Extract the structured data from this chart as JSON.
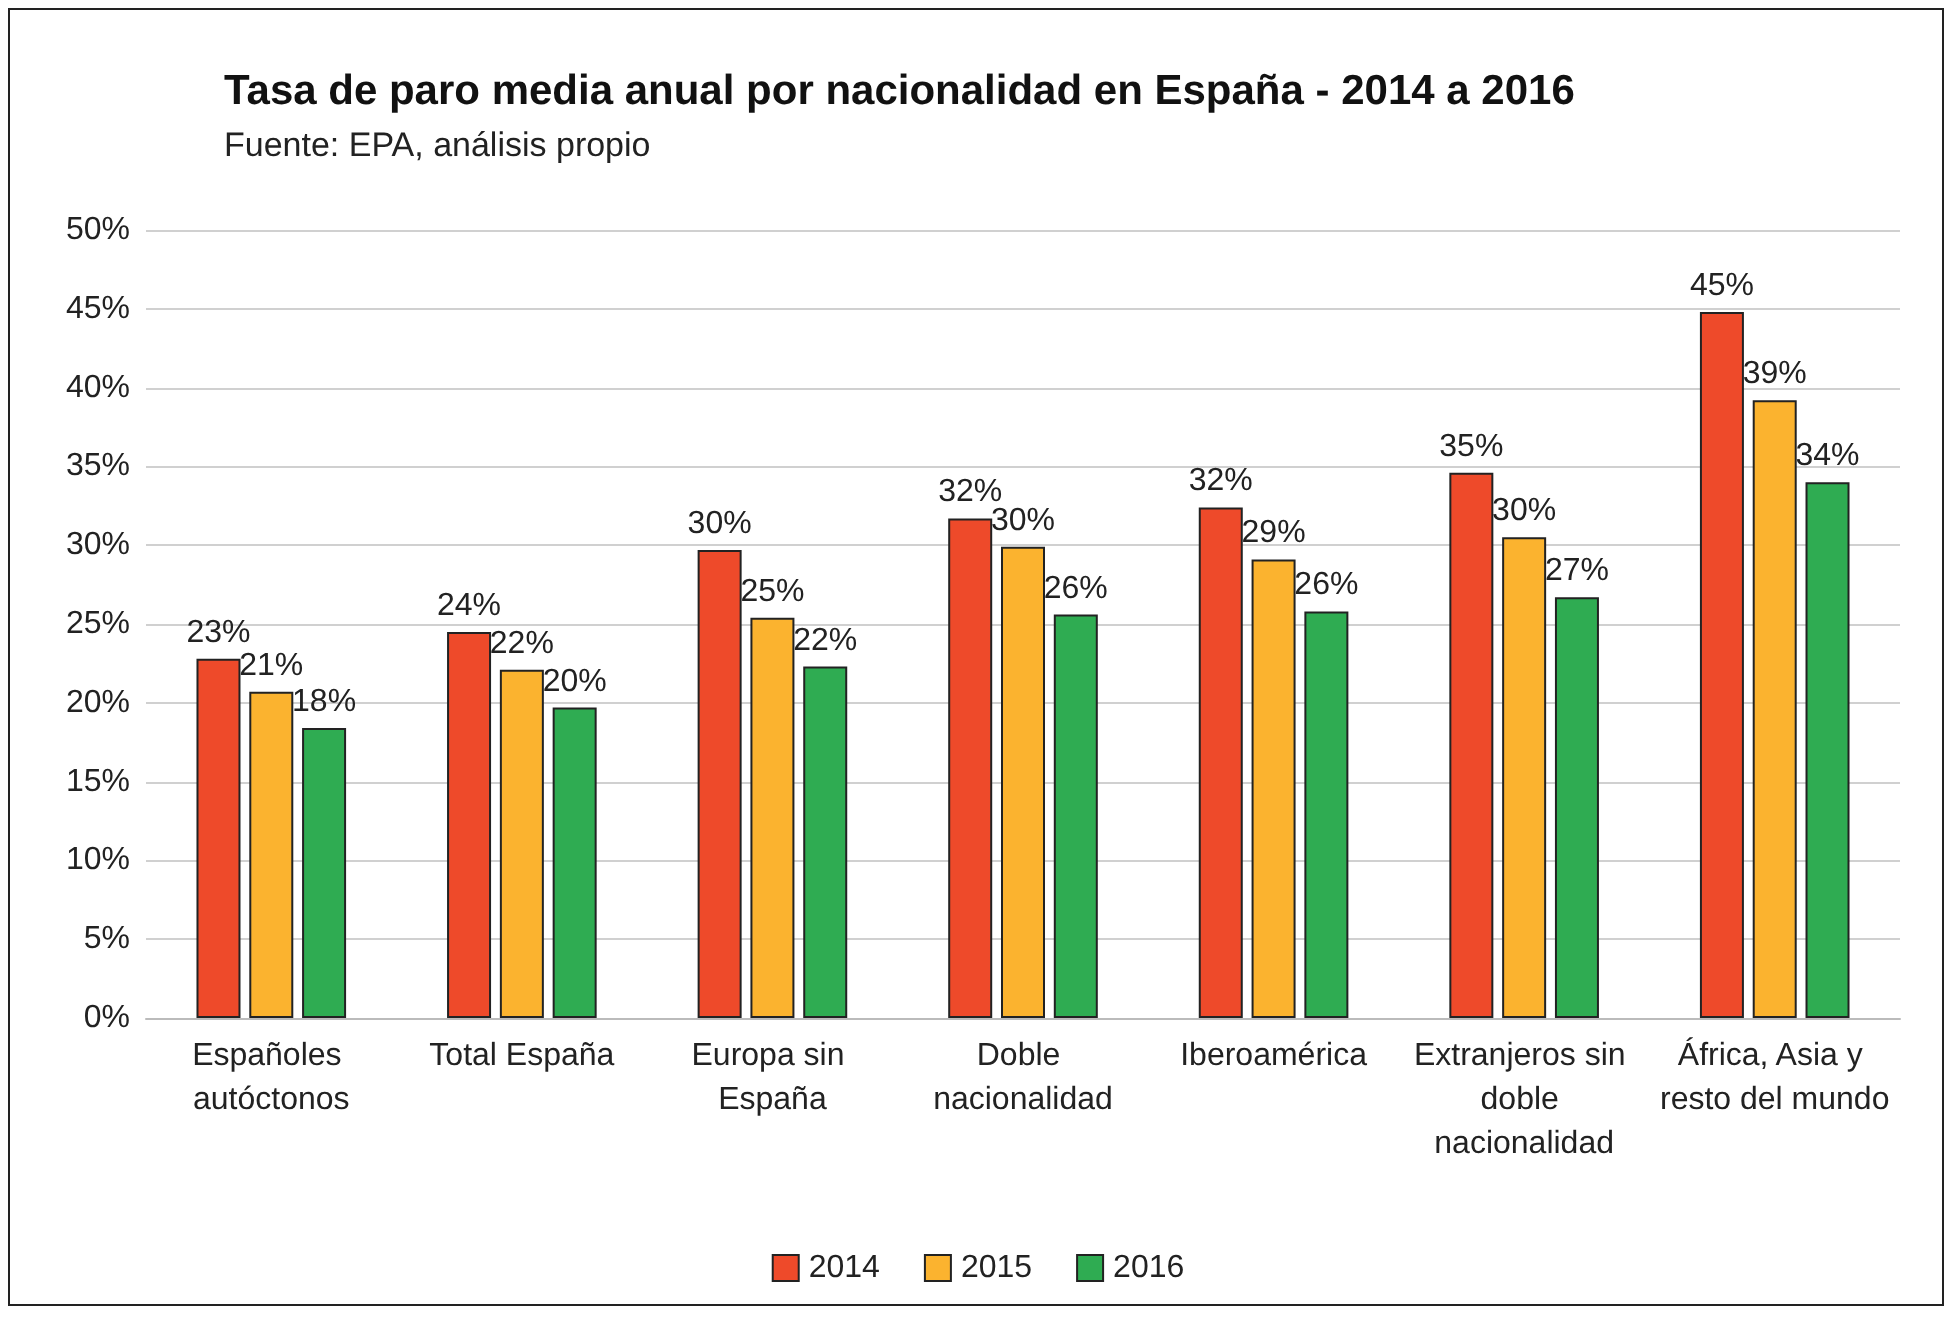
{
  "chart_data": {
    "type": "bar",
    "title": "Tasa de paro media anual por nacionalidad en España - 2014 a 2016",
    "subtitle": "Fuente: EPA, análisis propio",
    "categories": [
      "Españoles autóctonos",
      "Total España",
      "Europa sin España",
      "Doble nacionalidad",
      "Iberoamérica",
      "Extranjeros sin doble nacionalidad",
      "África, Asia y resto del mundo"
    ],
    "series": [
      {
        "name": "2014",
        "color": "#ee4a2a",
        "values": [
          22.8,
          24.5,
          29.7,
          31.7,
          32.4,
          34.6,
          44.8
        ],
        "value_labels": [
          "23%",
          "24%",
          "30%",
          "32%",
          "32%",
          "35%",
          "45%"
        ]
      },
      {
        "name": "2015",
        "color": "#fbb32f",
        "values": [
          20.7,
          22.1,
          25.4,
          29.9,
          29.1,
          30.5,
          39.2
        ],
        "value_labels": [
          "21%",
          "22%",
          "25%",
          "30%",
          "29%",
          "30%",
          "39%"
        ]
      },
      {
        "name": "2016",
        "color": "#2fac52",
        "values": [
          18.4,
          19.7,
          22.3,
          25.6,
          25.8,
          26.7,
          34.0
        ],
        "value_labels": [
          "18%",
          "20%",
          "22%",
          "26%",
          "26%",
          "27%",
          "34%"
        ]
      }
    ],
    "ylim": [
      0,
      50
    ],
    "yticks": [
      {
        "value": 0,
        "label": "0%"
      },
      {
        "value": 5,
        "label": "5%"
      },
      {
        "value": 10,
        "label": "10%"
      },
      {
        "value": 15,
        "label": "15%"
      },
      {
        "value": 20,
        "label": "20%"
      },
      {
        "value": 25,
        "label": "25%"
      },
      {
        "value": 30,
        "label": "30%"
      },
      {
        "value": 35,
        "label": "35%"
      },
      {
        "value": 40,
        "label": "40%"
      },
      {
        "value": 45,
        "label": "45%"
      },
      {
        "value": 50,
        "label": "50%"
      }
    ],
    "grid": "y",
    "legend": "bottom"
  }
}
